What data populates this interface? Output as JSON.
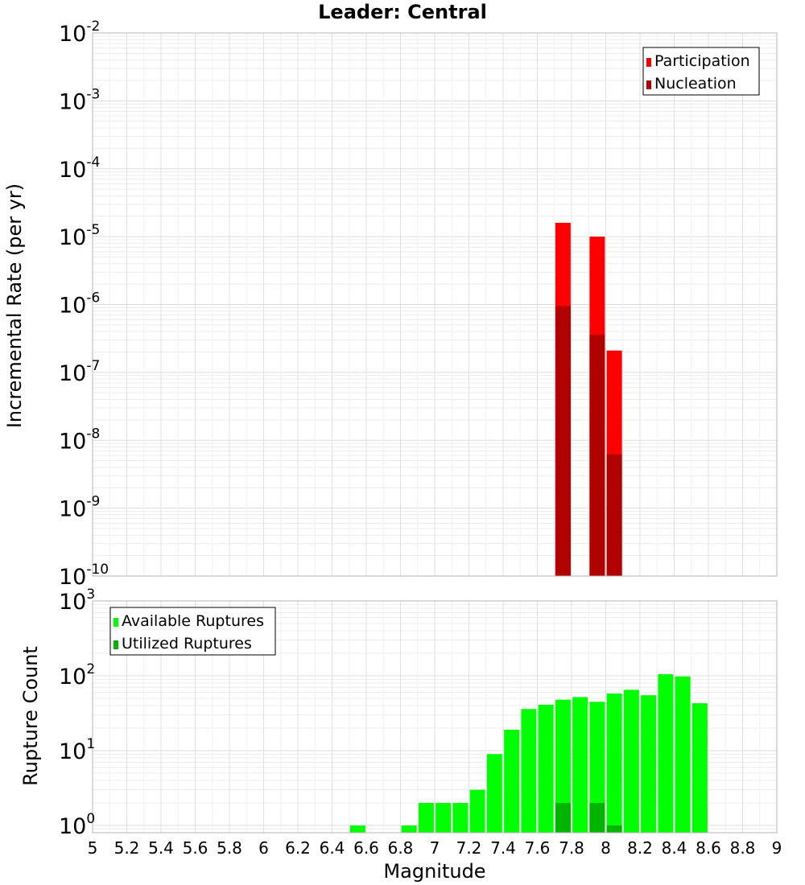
{
  "chart_data": [
    {
      "type": "bar",
      "title": "Leader: Central",
      "ylabel": "Incremental Rate (per yr)",
      "xlabel": "",
      "yscale": "log",
      "ylim": [
        1e-10,
        0.01
      ],
      "xlim": [
        5,
        9
      ],
      "ytick_labels": [
        {
          "value": 1e-10,
          "base": "10",
          "exp": "-10"
        },
        {
          "value": 1e-09,
          "base": "10",
          "exp": "-9"
        },
        {
          "value": 1e-08,
          "base": "10",
          "exp": "-8"
        },
        {
          "value": 1e-07,
          "base": "10",
          "exp": "-7"
        },
        {
          "value": 1e-06,
          "base": "10",
          "exp": "-6"
        },
        {
          "value": 1e-05,
          "base": "10",
          "exp": "-5"
        },
        {
          "value": 0.0001,
          "base": "10",
          "exp": "-4"
        },
        {
          "value": 0.001,
          "base": "10",
          "exp": "-3"
        },
        {
          "value": 0.01,
          "base": "10",
          "exp": "-2"
        }
      ],
      "legend": {
        "position": "top-right",
        "entries": [
          "Participation",
          "Nucleation"
        ]
      },
      "series": [
        {
          "name": "Participation",
          "color": "#ff0000",
          "x": [
            7.75,
            7.95,
            8.05
          ],
          "values": [
            1.6e-05,
            1e-05,
            2.1e-07
          ]
        },
        {
          "name": "Nucleation",
          "color": "#b00000",
          "x": [
            7.75,
            7.95,
            8.05
          ],
          "values": [
            9.5e-07,
            3.6e-07,
            6.2e-09
          ]
        }
      ]
    },
    {
      "type": "bar",
      "title": "",
      "ylabel": "Rupture Count",
      "xlabel": "Magnitude",
      "yscale": "log",
      "ylim": [
        0.8,
        1000
      ],
      "xlim": [
        5,
        9
      ],
      "ytick_labels": [
        {
          "value": 1,
          "base": "10",
          "exp": "0"
        },
        {
          "value": 10,
          "base": "10",
          "exp": "1"
        },
        {
          "value": 100,
          "base": "10",
          "exp": "2"
        },
        {
          "value": 1000,
          "base": "10",
          "exp": "3"
        }
      ],
      "xtick_labels": [
        "5",
        "5.2",
        "5.4",
        "5.6",
        "5.8",
        "6",
        "6.2",
        "6.4",
        "6.6",
        "6.8",
        "7",
        "7.2",
        "7.4",
        "7.6",
        "7.8",
        "8",
        "8.2",
        "8.4",
        "8.6",
        "8.8",
        "9"
      ],
      "legend": {
        "position": "top-left",
        "entries": [
          "Available Ruptures",
          "Utilized Ruptures"
        ]
      },
      "series": [
        {
          "name": "Available Ruptures",
          "color": "#00ff00",
          "x": [
            6.55,
            6.85,
            6.95,
            7.05,
            7.15,
            7.25,
            7.35,
            7.45,
            7.55,
            7.65,
            7.75,
            7.85,
            7.95,
            8.05,
            8.15,
            8.25,
            8.35,
            8.45,
            8.55
          ],
          "values": [
            1,
            1,
            2,
            2,
            2,
            3,
            9,
            19,
            36,
            41,
            48,
            52,
            45,
            58,
            65,
            55,
            105,
            98,
            43
          ]
        },
        {
          "name": "Utilized Ruptures",
          "color": "#00b400",
          "x": [
            7.75,
            7.95,
            8.05
          ],
          "values": [
            2,
            2,
            1
          ]
        }
      ]
    }
  ]
}
